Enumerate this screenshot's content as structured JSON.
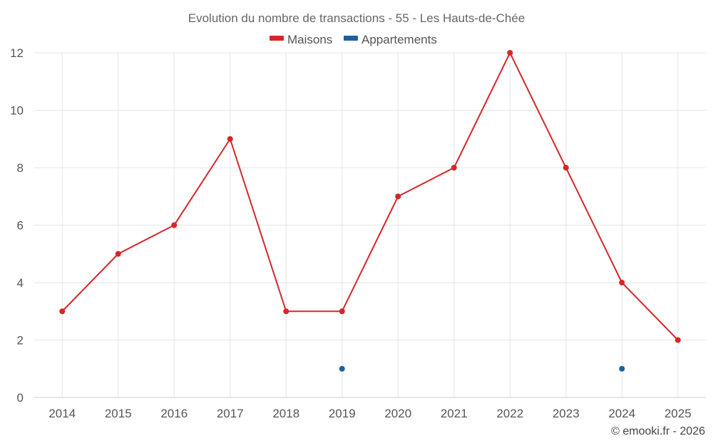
{
  "chart_data": {
    "type": "line",
    "title": "Evolution du nombre de transactions - 55 - Les Hauts-de-Chée",
    "categories": [
      "2014",
      "2015",
      "2016",
      "2017",
      "2018",
      "2019",
      "2020",
      "2021",
      "2022",
      "2023",
      "2024",
      "2025"
    ],
    "series": [
      {
        "name": "Maisons",
        "color": "#d62728",
        "values": [
          3,
          5,
          6,
          9,
          3,
          3,
          7,
          8,
          12,
          8,
          4,
          2
        ]
      },
      {
        "name": "Appartements",
        "color": "#1f5f9e",
        "values": [
          null,
          null,
          null,
          null,
          null,
          1,
          null,
          null,
          null,
          null,
          1,
          null
        ]
      }
    ],
    "ylim": [
      0,
      12
    ],
    "yticks": [
      0,
      2,
      4,
      6,
      8,
      10,
      12
    ],
    "grid": true,
    "legend_position": "top-center",
    "credit": "© emooki.fr - 2026"
  }
}
